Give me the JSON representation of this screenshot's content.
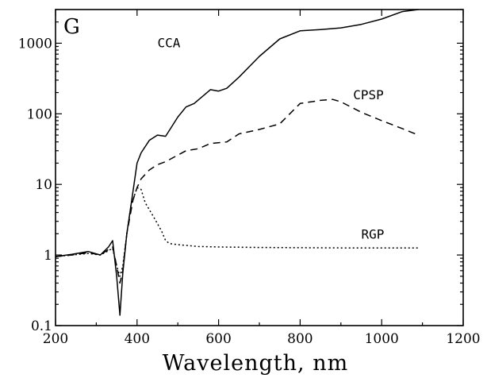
{
  "chart_data": {
    "type": "line",
    "panel_label": "G",
    "xlabel": "Wavelength, nm",
    "ylabel": "",
    "xlim": [
      200,
      1200
    ],
    "ylim": [
      0.1,
      3000
    ],
    "yscale": "log",
    "grid": false,
    "x_ticks": [
      200,
      400,
      600,
      800,
      1000,
      1200
    ],
    "y_ticks": [
      0.1,
      1,
      10,
      100,
      1000
    ],
    "x_tick_labels": [
      "200",
      "400",
      "600",
      "800",
      "1000",
      "1200"
    ],
    "y_tick_labels": [
      "0.1",
      "1",
      "10",
      "100",
      "1000"
    ],
    "series": [
      {
        "name": "CCA",
        "style": "solid",
        "label_x": 450,
        "label_y": 880,
        "x": [
          200,
          240,
          280,
          310,
          330,
          340,
          350,
          358,
          365,
          375,
          390,
          400,
          410,
          430,
          450,
          470,
          500,
          520,
          540,
          560,
          580,
          600,
          620,
          650,
          700,
          750,
          800,
          850,
          900,
          950,
          1000,
          1050,
          1090
        ],
        "y": [
          0.95,
          1.02,
          1.12,
          1.0,
          1.3,
          1.6,
          0.5,
          0.14,
          0.55,
          2.0,
          8.0,
          20,
          28,
          42,
          50,
          48,
          90,
          125,
          140,
          175,
          220,
          210,
          230,
          330,
          650,
          1150,
          1500,
          1560,
          1650,
          1850,
          2200,
          2800,
          3300
        ]
      },
      {
        "name": "CPSP",
        "style": "dashed",
        "label_x": 930,
        "label_y": 160,
        "x": [
          200,
          240,
          280,
          310,
          330,
          340,
          350,
          358,
          365,
          375,
          390,
          400,
          410,
          430,
          450,
          470,
          500,
          520,
          550,
          580,
          620,
          650,
          700,
          750,
          800,
          850,
          880,
          900,
          950,
          1000,
          1050,
          1090
        ],
        "y": [
          0.95,
          1.0,
          1.08,
          1.0,
          1.2,
          1.3,
          0.7,
          0.4,
          0.6,
          2.0,
          6.0,
          9.0,
          12,
          16,
          19,
          21,
          26,
          30,
          32,
          38,
          40,
          52,
          60,
          72,
          140,
          155,
          160,
          148,
          105,
          80,
          62,
          50
        ]
      },
      {
        "name": "RGP",
        "style": "dotted",
        "label_x": 950,
        "label_y": 1.7,
        "x": [
          200,
          240,
          280,
          310,
          330,
          340,
          350,
          358,
          365,
          375,
          385,
          400,
          410,
          420,
          440,
          460,
          470,
          480,
          500,
          550,
          600,
          700,
          800,
          900,
          1000,
          1090
        ],
        "y": [
          0.95,
          1.0,
          1.05,
          1.0,
          1.15,
          1.25,
          0.7,
          0.5,
          0.7,
          2.0,
          5.0,
          9.0,
          8.5,
          5.5,
          3.5,
          2.2,
          1.6,
          1.45,
          1.4,
          1.32,
          1.3,
          1.28,
          1.27,
          1.26,
          1.26,
          1.26
        ]
      }
    ]
  }
}
